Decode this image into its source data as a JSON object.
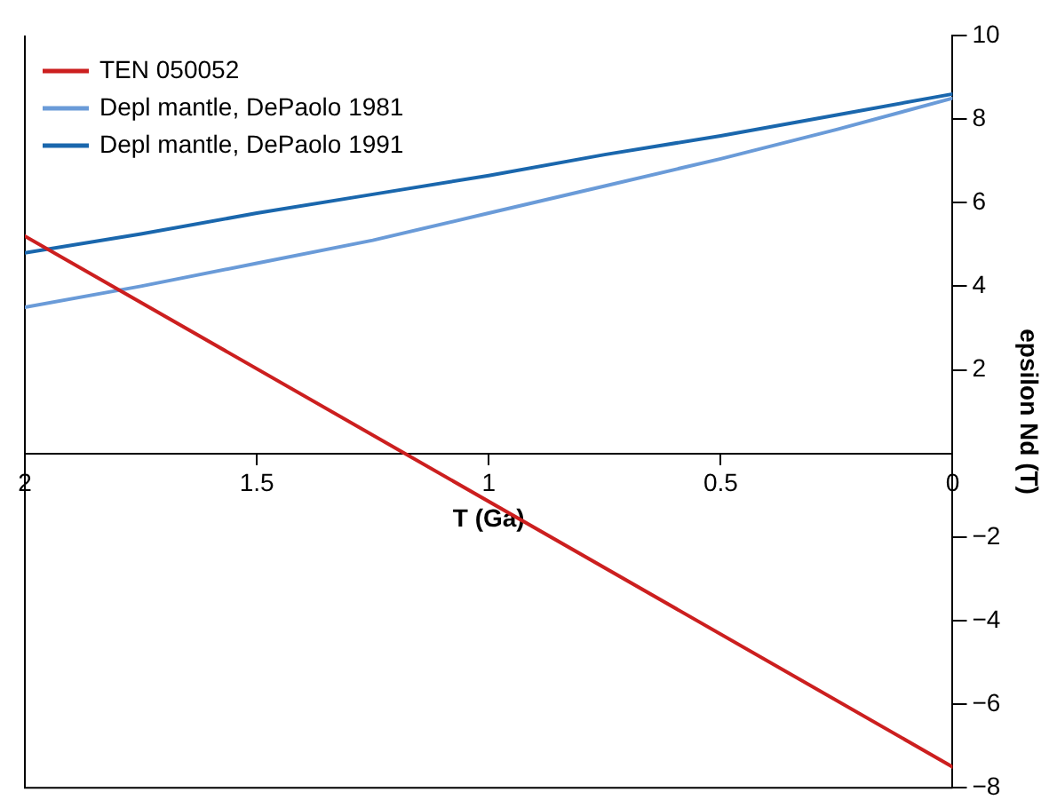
{
  "chart_data": {
    "type": "line",
    "xlabel": "T (Ga)",
    "ylabel": "epsilon Nd (T)",
    "xlim": [
      2,
      0
    ],
    "xticks": [
      2,
      1.5,
      1,
      0.5,
      0
    ],
    "ylim": [
      -8,
      10
    ],
    "yticks": [
      -8,
      -6,
      -4,
      -2,
      2,
      4,
      6,
      8,
      10
    ],
    "grid": false,
    "legend": "top left",
    "marker": "none",
    "line_style": "solid",
    "series": [
      {
        "name": "TEN 050052",
        "color": "#cc1f1f",
        "x": [
          2,
          0
        ],
        "values": [
          5.2,
          -7.5
        ]
      },
      {
        "name": "Depl mantle, DePaolo 1981",
        "color": "#6a9bd8",
        "x": [
          2,
          1.75,
          1.5,
          1.25,
          1,
          0.75,
          0.5,
          0.25,
          0
        ],
        "values": [
          3.5,
          4.0,
          4.55,
          5.1,
          5.75,
          6.4,
          7.05,
          7.75,
          8.5
        ]
      },
      {
        "name": "Depl mantle, DePaolo 1991",
        "color": "#1a67ad",
        "x": [
          2,
          1.75,
          1.5,
          1.25,
          1,
          0.75,
          0.5,
          0.25,
          0
        ],
        "values": [
          4.8,
          5.25,
          5.75,
          6.2,
          6.65,
          7.15,
          7.6,
          8.1,
          8.6
        ]
      }
    ]
  }
}
